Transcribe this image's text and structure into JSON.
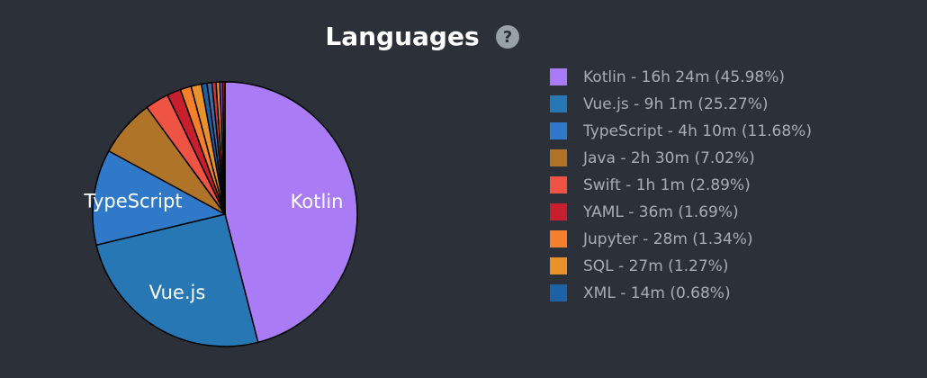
{
  "chart_data": {
    "type": "pie",
    "title": "Languages",
    "help_icon": "?",
    "categories": [
      "Kotlin",
      "Vue.js",
      "TypeScript",
      "Java",
      "Swift",
      "YAML",
      "Jupyter",
      "SQL",
      "XML",
      null,
      null,
      null,
      null,
      null
    ],
    "values": [
      45.98,
      25.27,
      11.68,
      7.02,
      2.89,
      1.69,
      1.34,
      1.27,
      0.68,
      0.6,
      0.5,
      0.45,
      0.35,
      0.28
    ],
    "legend_labels": [
      "Kotlin - 16h 24m (45.98%)",
      "Vue.js - 9h 1m (25.27%)",
      "TypeScript - 4h 10m (11.68%)",
      "Java - 2h 30m (7.02%)",
      "Swift - 1h 1m (2.89%)",
      "YAML - 36m (1.69%)",
      "Jupyter - 28m (1.34%)",
      "SQL - 27m (1.27%)",
      "XML - 14m (0.68%)",
      null,
      null,
      null,
      null,
      null
    ],
    "slice_labels": [
      true,
      true,
      true,
      false,
      false,
      false,
      false,
      false,
      false,
      false,
      false,
      false,
      false,
      false
    ],
    "colors": [
      "#a97bf5",
      "#2777b5",
      "#3079c9",
      "#b07429",
      "#ef5344",
      "#c81f2e",
      "#f57f2d",
      "#e9912b",
      "#1d62a6",
      "#3a6fa8",
      "#d4313a",
      "#f08a3a",
      "#7a5bc4",
      "#b52a2a"
    ]
  }
}
